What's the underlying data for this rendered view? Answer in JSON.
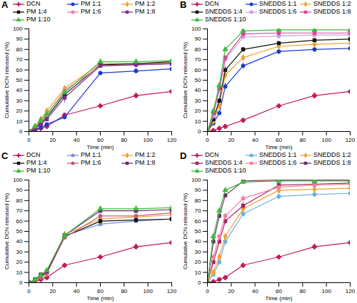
{
  "chart_data": [
    {
      "type": "line",
      "title": "A",
      "x_label": "Time (min)",
      "y_label": "Cumulative DCN released (%)",
      "x": [
        0,
        5,
        10,
        15,
        30,
        60,
        90,
        120
      ],
      "xlim": [
        0,
        120
      ],
      "xticks": [
        0,
        20,
        40,
        60,
        80,
        100,
        120
      ],
      "ylim": [
        0,
        100
      ],
      "yticks": [
        0,
        10,
        20,
        30,
        40,
        50,
        60,
        70,
        80,
        90,
        100
      ],
      "legend": "top",
      "series": [
        {
          "name": "DCN",
          "color": "#c2185b",
          "marker": "cross",
          "values": [
            0,
            1,
            3,
            5,
            16,
            25,
            35,
            39
          ],
          "errors": [
            0,
            0.5,
            0.5,
            0.5,
            1,
            1,
            3,
            1.5
          ]
        },
        {
          "name": "PM 1:1",
          "color": "#1a3bcc",
          "marker": "circle",
          "values": [
            0,
            2,
            4,
            7,
            14,
            57,
            59,
            61
          ],
          "errors": [
            0,
            0.5,
            0.5,
            1,
            1,
            1.5,
            3,
            3
          ]
        },
        {
          "name": "PM 1:2",
          "color": "#f0a030",
          "marker": "diamond",
          "values": [
            0,
            5,
            12,
            20,
            42,
            66,
            66,
            67
          ],
          "errors": [
            0,
            1,
            1,
            1.5,
            2,
            1.5,
            2,
            2
          ]
        },
        {
          "name": "PM 1:4",
          "color": "#111111",
          "marker": "square",
          "values": [
            0,
            3,
            8,
            14,
            36,
            65,
            66,
            68
          ],
          "errors": [
            0,
            0.5,
            1,
            1,
            3,
            1.5,
            2,
            2
          ]
        },
        {
          "name": "PM 1:6",
          "color": "#f07f9a",
          "marker": "circle",
          "values": [
            0,
            4,
            10,
            16,
            40,
            64,
            65,
            66
          ],
          "errors": [
            0,
            0.5,
            1,
            1,
            2,
            1.5,
            2,
            2
          ]
        },
        {
          "name": "PM 1:8",
          "color": "#7b2d8e",
          "marker": "square",
          "values": [
            0,
            3,
            7,
            12,
            33,
            64,
            65,
            66
          ],
          "errors": [
            0,
            0.5,
            1,
            1,
            5,
            1.5,
            2,
            2
          ]
        },
        {
          "name": "PM 1:10",
          "color": "#3dbb3d",
          "marker": "triangle",
          "values": [
            0,
            5,
            11,
            17,
            38,
            68,
            68,
            69
          ],
          "errors": [
            0,
            1,
            1,
            1,
            2,
            1.5,
            2,
            2
          ]
        }
      ]
    },
    {
      "type": "line",
      "title": "B",
      "x_label": "Time (min)",
      "y_label": "Cumulative DCN released (%)",
      "x": [
        0,
        5,
        10,
        15,
        30,
        60,
        90,
        120
      ],
      "xlim": [
        0,
        120
      ],
      "xticks": [
        0,
        20,
        40,
        60,
        80,
        100,
        120
      ],
      "ylim": [
        0,
        100
      ],
      "yticks": [
        0,
        10,
        20,
        30,
        40,
        50,
        60,
        70,
        80,
        90,
        100
      ],
      "legend": "top",
      "series": [
        {
          "name": "DCN",
          "color": "#c2185b",
          "marker": "cross",
          "values": [
            0,
            1,
            3,
            5,
            11,
            25,
            35,
            39
          ],
          "errors": [
            0,
            0.5,
            0.5,
            0.5,
            1,
            1,
            3,
            1.5
          ]
        },
        {
          "name": "SNEDDS 1:1",
          "color": "#1a3bcc",
          "marker": "circle",
          "values": [
            0,
            8,
            18,
            44,
            64,
            78,
            80,
            81
          ],
          "errors": [
            0,
            1,
            2,
            3,
            3,
            3,
            3,
            4
          ]
        },
        {
          "name": "SNEDDS 1:2",
          "color": "#f0a030",
          "marker": "diamond",
          "values": [
            0,
            10,
            25,
            55,
            72,
            83,
            85,
            86
          ],
          "errors": [
            0,
            1,
            2,
            3,
            2.5,
            2,
            3,
            3
          ]
        },
        {
          "name": "SNEDDS 1:4",
          "color": "#111111",
          "marker": "square",
          "values": [
            0,
            12,
            30,
            60,
            80,
            86,
            89,
            90
          ],
          "errors": [
            0,
            1,
            2,
            3,
            2,
            2,
            2,
            2
          ]
        },
        {
          "name": "SNEDDS 1:6",
          "color": "#c8a0e0",
          "marker": "circle",
          "values": [
            0,
            15,
            40,
            70,
            92,
            93,
            94,
            94
          ],
          "errors": [
            0,
            1,
            2,
            2,
            2,
            2,
            2,
            2
          ]
        },
        {
          "name": "SNEDDS 1:8",
          "color": "#e0409a",
          "marker": "square",
          "values": [
            0,
            18,
            42,
            72,
            95,
            96,
            96,
            96
          ],
          "errors": [
            0,
            1,
            2,
            2,
            1.5,
            1.5,
            1.5,
            1.5
          ]
        },
        {
          "name": "SNEDDS 1:10",
          "color": "#3dbb3d",
          "marker": "triangle",
          "values": [
            0,
            20,
            45,
            80,
            98,
            99,
            99,
            99
          ],
          "errors": [
            0,
            1,
            2,
            2,
            1,
            1,
            1,
            1
          ]
        }
      ]
    },
    {
      "type": "line",
      "title": "C",
      "x_label": "Time (min)",
      "y_label": "Cumulative DCN released (%)",
      "x": [
        0,
        5,
        10,
        15,
        30,
        60,
        90,
        120
      ],
      "xlim": [
        0,
        120
      ],
      "xticks": [
        0,
        20,
        40,
        60,
        80,
        100,
        120
      ],
      "ylim": [
        0,
        100
      ],
      "yticks": [
        0,
        10,
        20,
        30,
        40,
        50,
        60,
        70,
        80,
        90,
        100
      ],
      "legend": "top",
      "series": [
        {
          "name": "DCN",
          "color": "#c2185b",
          "marker": "cross",
          "values": [
            0,
            1,
            3,
            5,
            17,
            25,
            35,
            39
          ],
          "errors": [
            0,
            0.5,
            0.5,
            0.5,
            1,
            1,
            3,
            1.5
          ]
        },
        {
          "name": "PM 1:1",
          "color": "#7f8fd8",
          "marker": "circle",
          "values": [
            0,
            2,
            6,
            10,
            46,
            57,
            60,
            62
          ],
          "errors": [
            0,
            0.5,
            1,
            1,
            2,
            2,
            2,
            2
          ]
        },
        {
          "name": "PM 1:2",
          "color": "#f0a030",
          "marker": "diamond",
          "values": [
            0,
            2,
            6,
            9,
            47,
            62,
            64,
            66
          ],
          "errors": [
            0,
            0.5,
            1,
            1,
            2,
            2,
            2,
            2
          ]
        },
        {
          "name": "PM 1:4",
          "color": "#111111",
          "marker": "square",
          "values": [
            0,
            3,
            7,
            10,
            45,
            60,
            61,
            62
          ],
          "errors": [
            0,
            0.5,
            1,
            1,
            2,
            2,
            2,
            2
          ]
        },
        {
          "name": "PM 1:6",
          "color": "#c0607a",
          "marker": "circle",
          "values": [
            0,
            2,
            5,
            9,
            44,
            65,
            65,
            68
          ],
          "errors": [
            0,
            0.5,
            1,
            1,
            2,
            2,
            2,
            2
          ]
        },
        {
          "name": "PM 1:8",
          "color": "#6a2a6a",
          "marker": "square",
          "values": [
            0,
            3,
            8,
            11,
            46,
            70,
            70,
            71
          ],
          "errors": [
            0,
            0.5,
            1,
            1,
            2,
            2,
            2,
            2
          ]
        },
        {
          "name": "PM 1:10",
          "color": "#3dbb3d",
          "marker": "triangle",
          "values": [
            0,
            3,
            7,
            12,
            46,
            72,
            72,
            73
          ],
          "errors": [
            0,
            0.5,
            1,
            1,
            2,
            2,
            2,
            2
          ]
        }
      ]
    },
    {
      "type": "line",
      "title": "D",
      "x_label": "Time (min)",
      "y_label": "Cumulative DCN released (%)",
      "x": [
        0,
        5,
        10,
        15,
        30,
        60,
        90,
        120
      ],
      "xlim": [
        0,
        120
      ],
      "xticks": [
        0,
        20,
        40,
        60,
        80,
        100,
        120
      ],
      "ylim": [
        0,
        100
      ],
      "yticks": [
        0,
        10,
        20,
        30,
        40,
        50,
        60,
        70,
        80,
        90,
        100
      ],
      "legend": "top",
      "series": [
        {
          "name": "DCN",
          "color": "#c2185b",
          "marker": "cross",
          "values": [
            0,
            1,
            3,
            5,
            17,
            25,
            35,
            39
          ],
          "errors": [
            0,
            0.5,
            0.5,
            0.5,
            1,
            1,
            3,
            1.5
          ]
        },
        {
          "name": "SNEDDS 1:1",
          "color": "#6ab0e0",
          "marker": "circle",
          "values": [
            0,
            8,
            20,
            40,
            67,
            84,
            86,
            87
          ],
          "errors": [
            0,
            1,
            2,
            3,
            3,
            3,
            3,
            3
          ]
        },
        {
          "name": "SNEDDS 1:2",
          "color": "#f0a030",
          "marker": "diamond",
          "values": [
            0,
            10,
            25,
            45,
            72,
            90,
            91,
            92
          ],
          "errors": [
            0,
            1,
            2,
            3,
            3,
            3,
            3,
            3
          ]
        },
        {
          "name": "SNEDDS 1:4",
          "color": "#a02060",
          "marker": "square",
          "values": [
            0,
            20,
            40,
            60,
            75,
            95,
            96,
            97
          ],
          "errors": [
            0,
            1,
            2,
            3,
            3,
            2,
            2,
            2
          ]
        },
        {
          "name": "SNEDDS 1:6",
          "color": "#f07f9a",
          "marker": "circle",
          "values": [
            0,
            25,
            45,
            65,
            82,
            93,
            95,
            96
          ],
          "errors": [
            0,
            1,
            2,
            3,
            3,
            2,
            2,
            2
          ]
        },
        {
          "name": "SNEDDS 1:8",
          "color": "#6a2a6a",
          "marker": "square",
          "values": [
            0,
            40,
            65,
            85,
            99,
            100,
            100,
            100
          ],
          "errors": [
            0,
            2,
            2,
            2,
            1,
            1,
            1,
            1
          ]
        },
        {
          "name": "SNEDDS 1:10",
          "color": "#3dbb3d",
          "marker": "triangle",
          "values": [
            0,
            45,
            70,
            90,
            98,
            99,
            99,
            99
          ],
          "errors": [
            0,
            2,
            2,
            2,
            1,
            1,
            1,
            1
          ]
        }
      ]
    }
  ]
}
